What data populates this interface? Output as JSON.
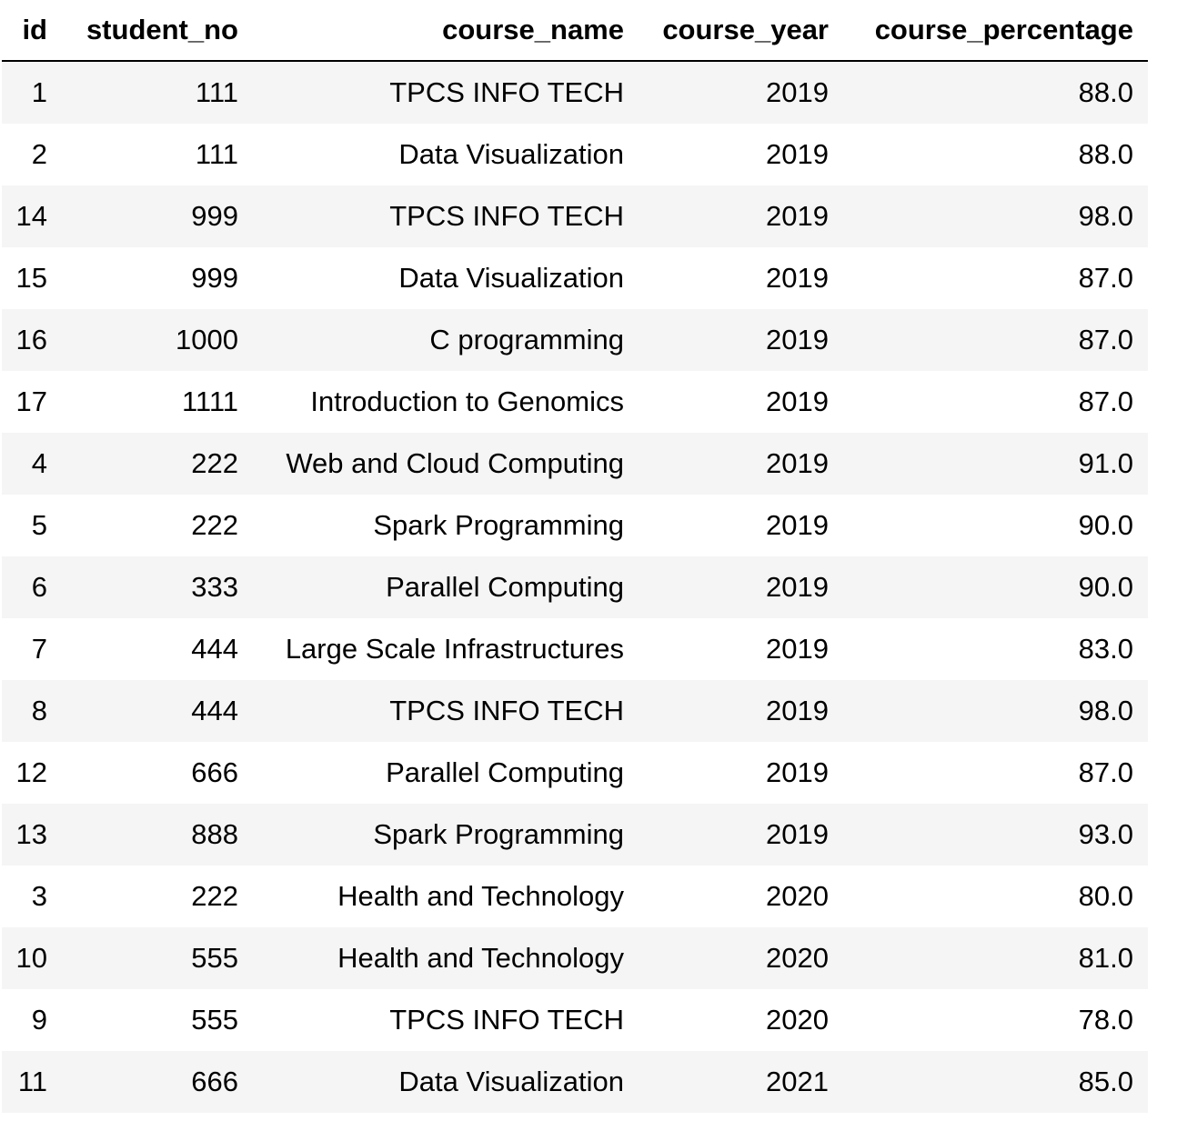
{
  "table": {
    "columns": [
      "id",
      "student_no",
      "course_name",
      "course_year",
      "course_percentage"
    ],
    "rows": [
      [
        "1",
        "111",
        "TPCS INFO TECH",
        "2019",
        "88.0"
      ],
      [
        "2",
        "111",
        "Data Visualization",
        "2019",
        "88.0"
      ],
      [
        "14",
        "999",
        "TPCS INFO TECH",
        "2019",
        "98.0"
      ],
      [
        "15",
        "999",
        "Data Visualization",
        "2019",
        "87.0"
      ],
      [
        "16",
        "1000",
        "C programming",
        "2019",
        "87.0"
      ],
      [
        "17",
        "1111",
        "Introduction to Genomics",
        "2019",
        "87.0"
      ],
      [
        "4",
        "222",
        "Web and Cloud Computing",
        "2019",
        "91.0"
      ],
      [
        "5",
        "222",
        "Spark Programming",
        "2019",
        "90.0"
      ],
      [
        "6",
        "333",
        "Parallel Computing",
        "2019",
        "90.0"
      ],
      [
        "7",
        "444",
        "Large Scale Infrastructures",
        "2019",
        "83.0"
      ],
      [
        "8",
        "444",
        "TPCS INFO TECH",
        "2019",
        "98.0"
      ],
      [
        "12",
        "666",
        "Parallel Computing",
        "2019",
        "87.0"
      ],
      [
        "13",
        "888",
        "Spark Programming",
        "2019",
        "93.0"
      ],
      [
        "3",
        "222",
        "Health and Technology",
        "2020",
        "80.0"
      ],
      [
        "10",
        "555",
        "Health and Technology",
        "2020",
        "81.0"
      ],
      [
        "9",
        "555",
        "TPCS INFO TECH",
        "2020",
        "78.0"
      ],
      [
        "11",
        "666",
        "Data Visualization",
        "2021",
        "85.0"
      ]
    ]
  },
  "colors": {
    "stripe": "#f5f5f5",
    "background": "#ffffff",
    "text": "#000000"
  }
}
